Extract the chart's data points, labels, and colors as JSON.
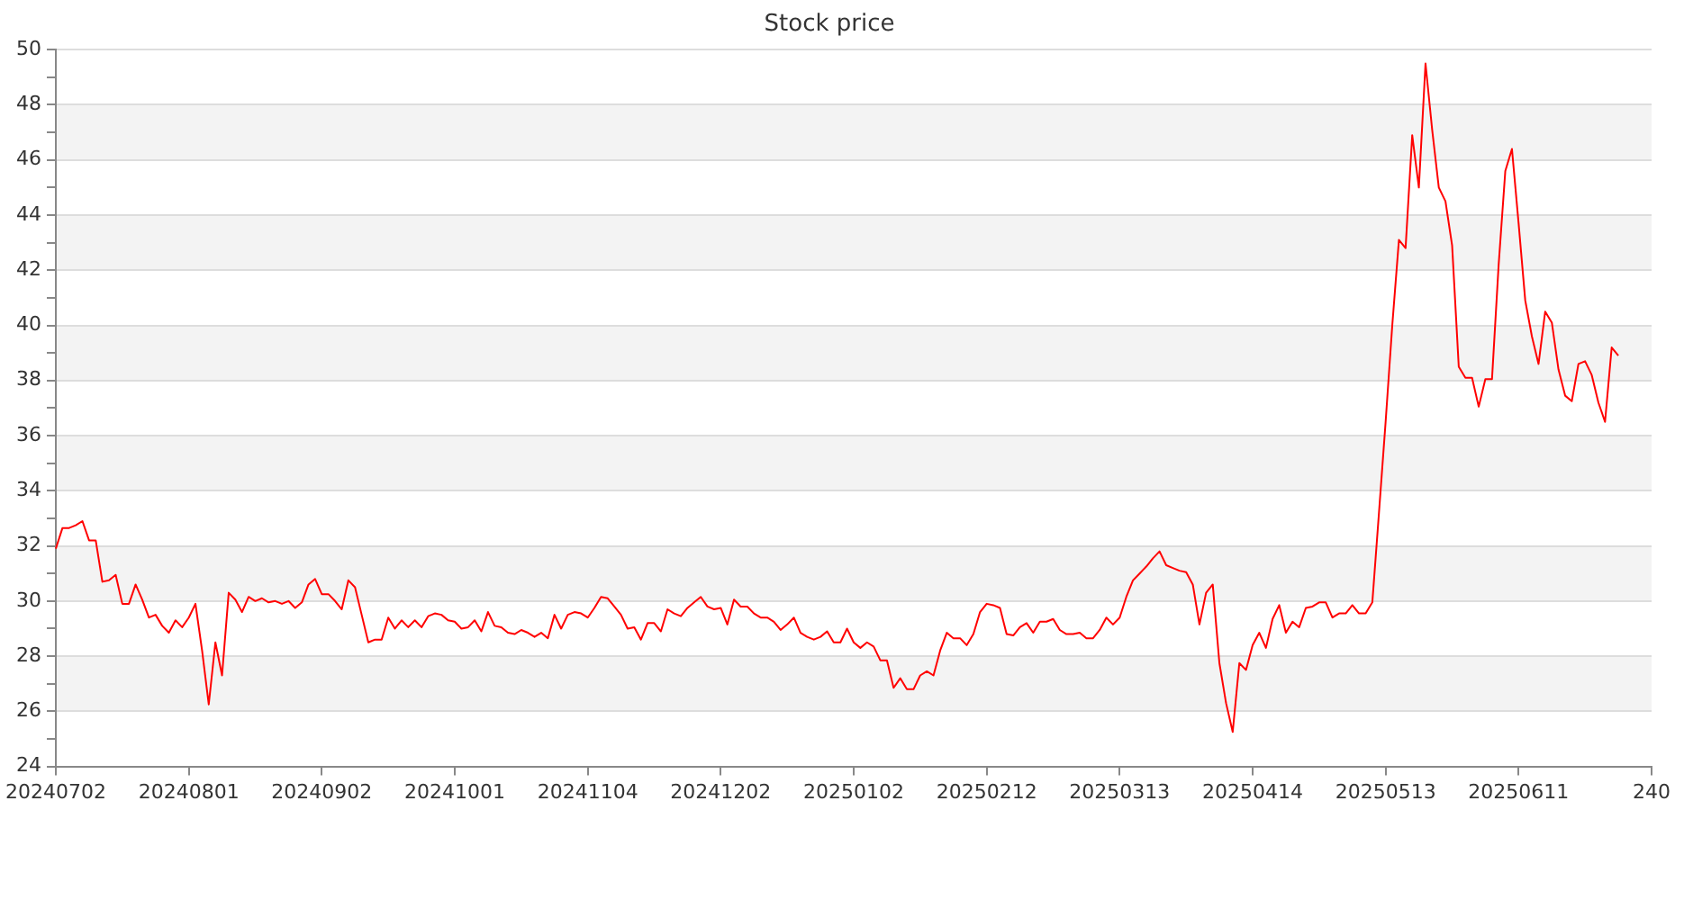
{
  "chart_data": {
    "type": "line",
    "title": "Stock price",
    "categories": [
      "20240702",
      null,
      null,
      null,
      null,
      null,
      null,
      null,
      null,
      null,
      null,
      null,
      null,
      null,
      null,
      null,
      null,
      null,
      null,
      null,
      "20240801",
      null,
      null,
      null,
      null,
      null,
      null,
      null,
      null,
      null,
      null,
      null,
      null,
      null,
      null,
      null,
      null,
      null,
      null,
      null,
      "20240902",
      null,
      null,
      null,
      null,
      null,
      null,
      null,
      null,
      null,
      null,
      null,
      null,
      null,
      null,
      null,
      null,
      null,
      null,
      null,
      "20241001",
      null,
      null,
      null,
      null,
      null,
      null,
      null,
      null,
      null,
      null,
      null,
      null,
      null,
      null,
      null,
      null,
      null,
      null,
      null,
      "20241104",
      null,
      null,
      null,
      null,
      null,
      null,
      null,
      null,
      null,
      null,
      null,
      null,
      null,
      null,
      null,
      null,
      null,
      null,
      null,
      "20241202",
      null,
      null,
      null,
      null,
      null,
      null,
      null,
      null,
      null,
      null,
      null,
      null,
      null,
      null,
      null,
      null,
      null,
      null,
      null,
      "20250102",
      null,
      null,
      null,
      null,
      null,
      null,
      null,
      null,
      null,
      null,
      null,
      null,
      null,
      null,
      null,
      null,
      null,
      null,
      null,
      "20250212",
      null,
      null,
      null,
      null,
      null,
      null,
      null,
      null,
      null,
      null,
      null,
      null,
      null,
      null,
      null,
      null,
      null,
      null,
      null,
      "20250313",
      null,
      null,
      null,
      null,
      null,
      null,
      null,
      null,
      null,
      null,
      null,
      null,
      null,
      null,
      null,
      null,
      null,
      null,
      null,
      "20250414",
      null,
      null,
      null,
      null,
      null,
      null,
      null,
      null,
      null,
      null,
      null,
      null,
      null,
      null,
      null,
      null,
      null,
      null,
      null,
      "20250513",
      null,
      null,
      null,
      null,
      null,
      null,
      null,
      null,
      null,
      null,
      null,
      null,
      null,
      null,
      null,
      null,
      null,
      null,
      null,
      "20250611",
      null,
      null,
      null,
      null,
      null,
      null,
      null,
      null,
      null,
      null,
      null,
      null,
      null,
      null,
      null,
      null,
      null,
      null,
      null,
      "240"
    ],
    "series": [
      {
        "color": "#ff0000",
        "values": [
          31.9,
          32.65,
          32.65,
          32.75,
          32.9,
          32.2,
          32.2,
          30.7,
          30.75,
          30.95,
          29.9,
          29.9,
          30.6,
          30.05,
          29.4,
          29.5,
          29.1,
          28.85,
          29.3,
          29.05,
          29.4,
          29.9,
          28.2,
          26.25,
          28.5,
          27.3,
          30.3,
          30.05,
          29.6,
          30.15,
          30.0,
          30.1,
          29.95,
          30.0,
          29.9,
          30.0,
          29.75,
          29.95,
          30.6,
          30.8,
          30.25,
          30.25,
          30.0,
          29.7,
          30.75,
          30.5,
          29.5,
          28.5,
          28.6,
          28.6,
          29.4,
          29.0,
          29.3,
          29.05,
          29.3,
          29.05,
          29.45,
          29.55,
          29.5,
          29.3,
          29.25,
          29.0,
          29.05,
          29.3,
          28.9,
          29.6,
          29.1,
          29.05,
          28.85,
          28.8,
          28.95,
          28.85,
          28.7,
          28.85,
          28.65,
          29.5,
          29.0,
          29.5,
          29.6,
          29.55,
          29.4,
          29.75,
          30.15,
          30.1,
          29.8,
          29.5,
          29.0,
          29.05,
          28.6,
          29.2,
          29.2,
          28.9,
          29.7,
          29.55,
          29.45,
          29.75,
          29.95,
          30.15,
          29.8,
          29.7,
          29.75,
          29.15,
          30.05,
          29.8,
          29.8,
          29.55,
          29.4,
          29.4,
          29.25,
          28.95,
          29.15,
          29.4,
          28.85,
          28.7,
          28.6,
          28.7,
          28.9,
          28.5,
          28.5,
          29.0,
          28.5,
          28.3,
          28.5,
          28.35,
          27.85,
          27.85,
          26.85,
          27.2,
          26.8,
          26.8,
          27.3,
          27.45,
          27.3,
          28.2,
          28.85,
          28.65,
          28.65,
          28.4,
          28.8,
          29.6,
          29.9,
          29.85,
          29.75,
          28.8,
          28.75,
          29.05,
          29.2,
          28.85,
          29.25,
          29.25,
          29.35,
          28.95,
          28.8,
          28.8,
          28.85,
          28.65,
          28.65,
          28.95,
          29.4,
          29.15,
          29.4,
          30.15,
          30.75,
          31.0,
          31.25,
          31.55,
          31.8,
          31.3,
          31.2,
          31.1,
          31.05,
          30.6,
          29.15,
          30.3,
          30.6,
          27.75,
          26.3,
          25.25,
          27.75,
          27.5,
          28.4,
          28.85,
          28.3,
          29.35,
          29.85,
          28.85,
          29.25,
          29.05,
          29.75,
          29.8,
          29.95,
          29.95,
          29.4,
          29.55,
          29.55,
          29.85,
          29.55,
          29.55,
          29.95,
          33.2,
          36.5,
          40.0,
          43.1,
          42.8,
          46.9,
          45.0,
          49.5,
          47.1,
          45.0,
          44.5,
          42.9,
          38.5,
          38.1,
          38.1,
          37.05,
          38.05,
          38.05,
          42.2,
          45.6,
          46.4,
          43.7,
          40.9,
          39.6,
          38.6,
          40.5,
          40.1,
          38.4,
          37.45,
          37.25,
          38.6,
          38.7,
          38.2,
          37.2,
          36.5,
          39.2,
          38.9,
          null,
          null,
          null,
          null,
          null
        ]
      }
    ],
    "ylim": [
      24,
      50
    ],
    "yticks": [
      24,
      {
        "value": 25,
        "label": null
      },
      26,
      {
        "value": 27,
        "label": null
      },
      28,
      {
        "value": 29,
        "label": null
      },
      30,
      {
        "value": 31,
        "label": null
      },
      32,
      {
        "value": 33,
        "label": null
      },
      34,
      {
        "value": 35,
        "label": null
      },
      36,
      {
        "value": 37,
        "label": null
      },
      38,
      {
        "value": 39,
        "label": null
      },
      40,
      {
        "value": 41,
        "label": null
      },
      42,
      {
        "value": 43,
        "label": null
      },
      44,
      {
        "value": 45,
        "label": null
      },
      46,
      {
        "value": 47,
        "label": null
      },
      48,
      {
        "value": 49,
        "label": null
      },
      50
    ],
    "grid": "y",
    "legend": false,
    "marker": "none",
    "line_style": "solid"
  }
}
